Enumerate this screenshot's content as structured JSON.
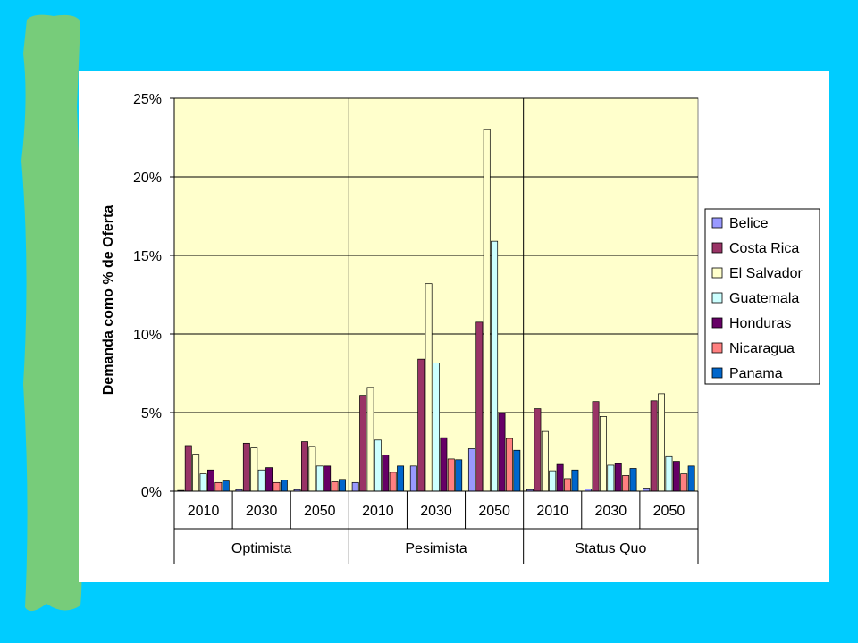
{
  "chart_data": {
    "type": "bar",
    "ylabel": "Demanda como % de Oferta",
    "ylim": [
      0,
      25
    ],
    "yticks": [
      "0%",
      "5%",
      "10%",
      "15%",
      "20%",
      "25%"
    ],
    "grid": true,
    "legend_position": "right",
    "groups": [
      {
        "name": "Optimista",
        "categories": [
          "2010",
          "2030",
          "2050"
        ]
      },
      {
        "name": "Pesimista",
        "categories": [
          "2010",
          "2030",
          "2050"
        ]
      },
      {
        "name": "Status Quo",
        "categories": [
          "2010",
          "2030",
          "2050"
        ]
      }
    ],
    "series": [
      {
        "name": "Belice",
        "color": "#9999FF",
        "values": [
          0.05,
          0.1,
          0.1,
          0.55,
          1.6,
          2.7,
          0.1,
          0.15,
          0.2
        ]
      },
      {
        "name": "Costa Rica",
        "color": "#993366",
        "values": [
          2.9,
          3.05,
          3.15,
          6.1,
          8.4,
          10.75,
          5.25,
          5.7,
          5.75
        ]
      },
      {
        "name": "El Salvador",
        "color": "#FFFFCC",
        "values": [
          2.35,
          2.75,
          2.85,
          6.6,
          13.2,
          23.0,
          3.8,
          4.75,
          6.2
        ]
      },
      {
        "name": "Guatemala",
        "color": "#CCFFFF",
        "values": [
          1.1,
          1.35,
          1.6,
          3.25,
          8.15,
          15.9,
          1.3,
          1.65,
          2.2
        ]
      },
      {
        "name": "Honduras",
        "color": "#660066",
        "values": [
          1.35,
          1.5,
          1.6,
          2.3,
          3.4,
          4.95,
          1.7,
          1.75,
          1.9
        ]
      },
      {
        "name": "Nicaragua",
        "color": "#FF8080",
        "values": [
          0.55,
          0.55,
          0.6,
          1.2,
          2.05,
          3.35,
          0.8,
          1.0,
          1.1
        ]
      },
      {
        "name": "Panama",
        "color": "#0066CC",
        "values": [
          0.65,
          0.7,
          0.75,
          1.6,
          2.0,
          2.6,
          1.35,
          1.45,
          1.6
        ]
      }
    ]
  },
  "colors": {
    "background": "#00CCFF",
    "green_strip": "#77CC7A",
    "plot_area": "#FFFFCC"
  }
}
